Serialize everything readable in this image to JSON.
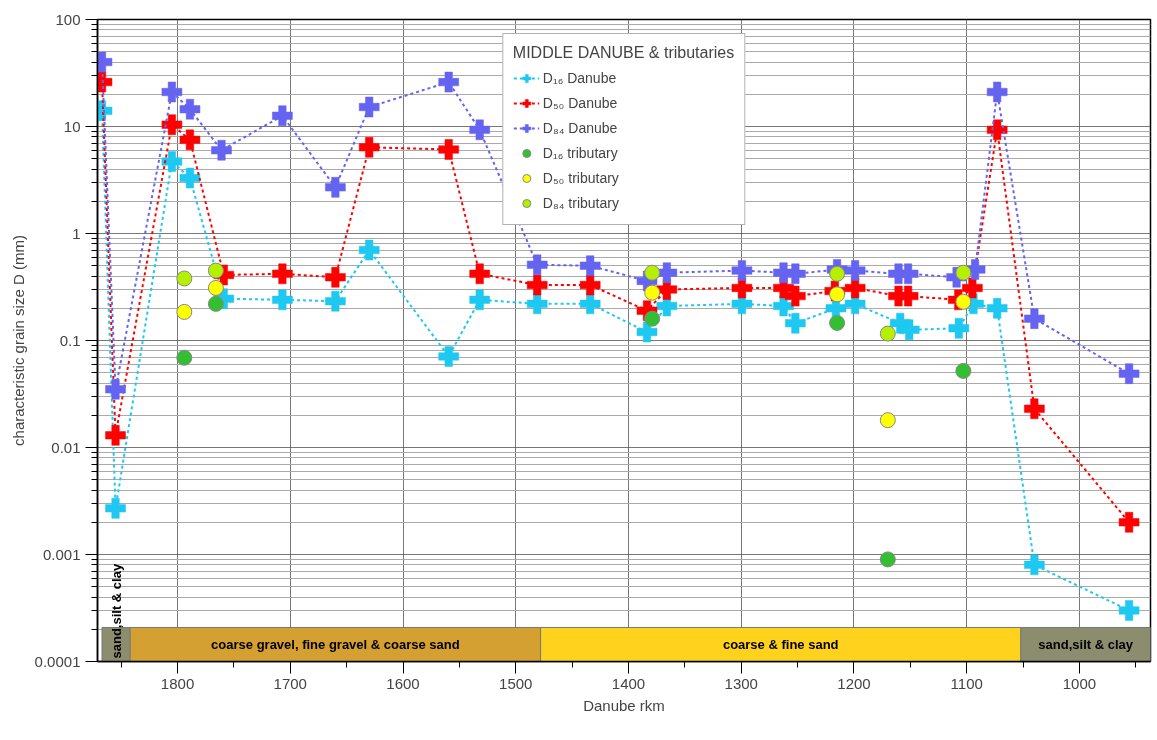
{
  "chart_data": {
    "type": "line",
    "xlabel": "Danube rkm",
    "ylabel": "characteristic grain size D (mm)",
    "legend_title": "MIDDLE DANUBE & tributaries",
    "xlim": [
      1871,
      937
    ],
    "xticks": [
      1800,
      1700,
      1600,
      1500,
      1400,
      1300,
      1200,
      1100,
      1000
    ],
    "ylim": [
      0.0001,
      100
    ],
    "yticks": [
      0.0001,
      0.001,
      0.01,
      0.1,
      1,
      10,
      100
    ],
    "log": "y",
    "grid": true,
    "legend": "top",
    "series": [
      {
        "name": "D₁₆ Danube",
        "type": "line",
        "marker": "cross",
        "line_style": "dashed",
        "color": "#1ec8f0",
        "x": [
          1867,
          1855,
          1805,
          1789,
          1759,
          1707,
          1660,
          1630,
          1559.5,
          1532,
          1481,
          1434,
          1383.6,
          1366,
          1299.4,
          1262.5,
          1252,
          1216,
          1199,
          1159,
          1151,
          1107,
          1094,
          1073,
          1040,
          956
        ],
        "values": [
          14,
          0.0027,
          4.7,
          3.3,
          0.246,
          0.24,
          0.233,
          0.7,
          0.071,
          0.24,
          0.22,
          0.22,
          0.12,
          0.21,
          0.22,
          0.21,
          0.145,
          0.2,
          0.22,
          0.145,
          0.126,
          0.13,
          0.22,
          0.2,
          0.0008,
          0.0003
        ]
      },
      {
        "name": "D₅₀ Danube",
        "type": "line",
        "marker": "cross",
        "line_style": "dashed",
        "color": "#ff0000",
        "x": [
          1867,
          1855,
          1805,
          1789,
          1759,
          1707,
          1660,
          1630,
          1559.5,
          1532,
          1481,
          1434,
          1383.6,
          1366,
          1299.4,
          1262.5,
          1252,
          1217,
          1199,
          1160.5,
          1152,
          1107.5,
          1095,
          1073,
          1040,
          956
        ],
        "values": [
          26,
          0.013,
          10.4,
          7.5,
          0.41,
          0.42,
          0.39,
          6.4,
          6.1,
          0.42,
          0.33,
          0.33,
          0.19,
          0.3,
          0.31,
          0.31,
          0.26,
          0.29,
          0.31,
          0.26,
          0.26,
          0.24,
          0.31,
          9.3,
          0.023,
          0.002
        ]
      },
      {
        "name": "D₈₄ Danube",
        "type": "line",
        "marker": "cross",
        "line_style": "dashed",
        "color": "#6464f0",
        "x": [
          1867,
          1855,
          1805,
          1789,
          1761,
          1707,
          1660,
          1630,
          1559.5,
          1532,
          1481,
          1434,
          1383.6,
          1366,
          1299.4,
          1262.5,
          1252,
          1215,
          1199,
          1160.5,
          1152,
          1109,
          1092.6,
          1073,
          1040,
          956
        ],
        "values": [
          40,
          0.035,
          21,
          14.5,
          6,
          12.6,
          2.7,
          15.2,
          26,
          9.3,
          0.51,
          0.5,
          0.36,
          0.43,
          0.45,
          0.43,
          0.42,
          0.46,
          0.45,
          0.42,
          0.42,
          0.39,
          0.46,
          21,
          0.16,
          0.049
        ]
      },
      {
        "name": "D₁₆ tributary",
        "type": "scatter",
        "marker": "circle",
        "color": "#32c032",
        "x": [
          1794,
          1766,
          1379,
          1215,
          1170,
          1103
        ],
        "values": [
          0.069,
          0.22,
          0.16,
          0.146,
          0.0009,
          0.052
        ]
      },
      {
        "name": "D₅₀ tributary",
        "type": "scatter",
        "marker": "circle",
        "color": "#ffff00",
        "x": [
          1794,
          1766,
          1379,
          1215,
          1170,
          1103
        ],
        "values": [
          0.185,
          0.31,
          0.28,
          0.27,
          0.018,
          0.23
        ]
      },
      {
        "name": "D₈₄ tributary",
        "type": "scatter",
        "marker": "circle",
        "color": "#b4f000",
        "x": [
          1794,
          1766,
          1379,
          1215,
          1170,
          1103
        ],
        "values": [
          0.38,
          0.45,
          0.43,
          0.42,
          0.116,
          0.43
        ]
      }
    ],
    "bands": [
      {
        "axis": "x",
        "from": 1867,
        "to": 1842,
        "label": "sand,silt & clay",
        "color": "#8c8c6e"
      },
      {
        "axis": "x",
        "from": 1842,
        "to": 1478,
        "label": "coarse gravel, fine gravel & coarse sand",
        "color": "#d4a032"
      },
      {
        "axis": "x",
        "from": 1478,
        "to": 1052,
        "label": "coarse & fine sand",
        "color": "#ffd21e"
      },
      {
        "axis": "x",
        "from": 1052,
        "to": 937,
        "label": "sand,silt & clay",
        "color": "#8c8c6e"
      }
    ]
  }
}
